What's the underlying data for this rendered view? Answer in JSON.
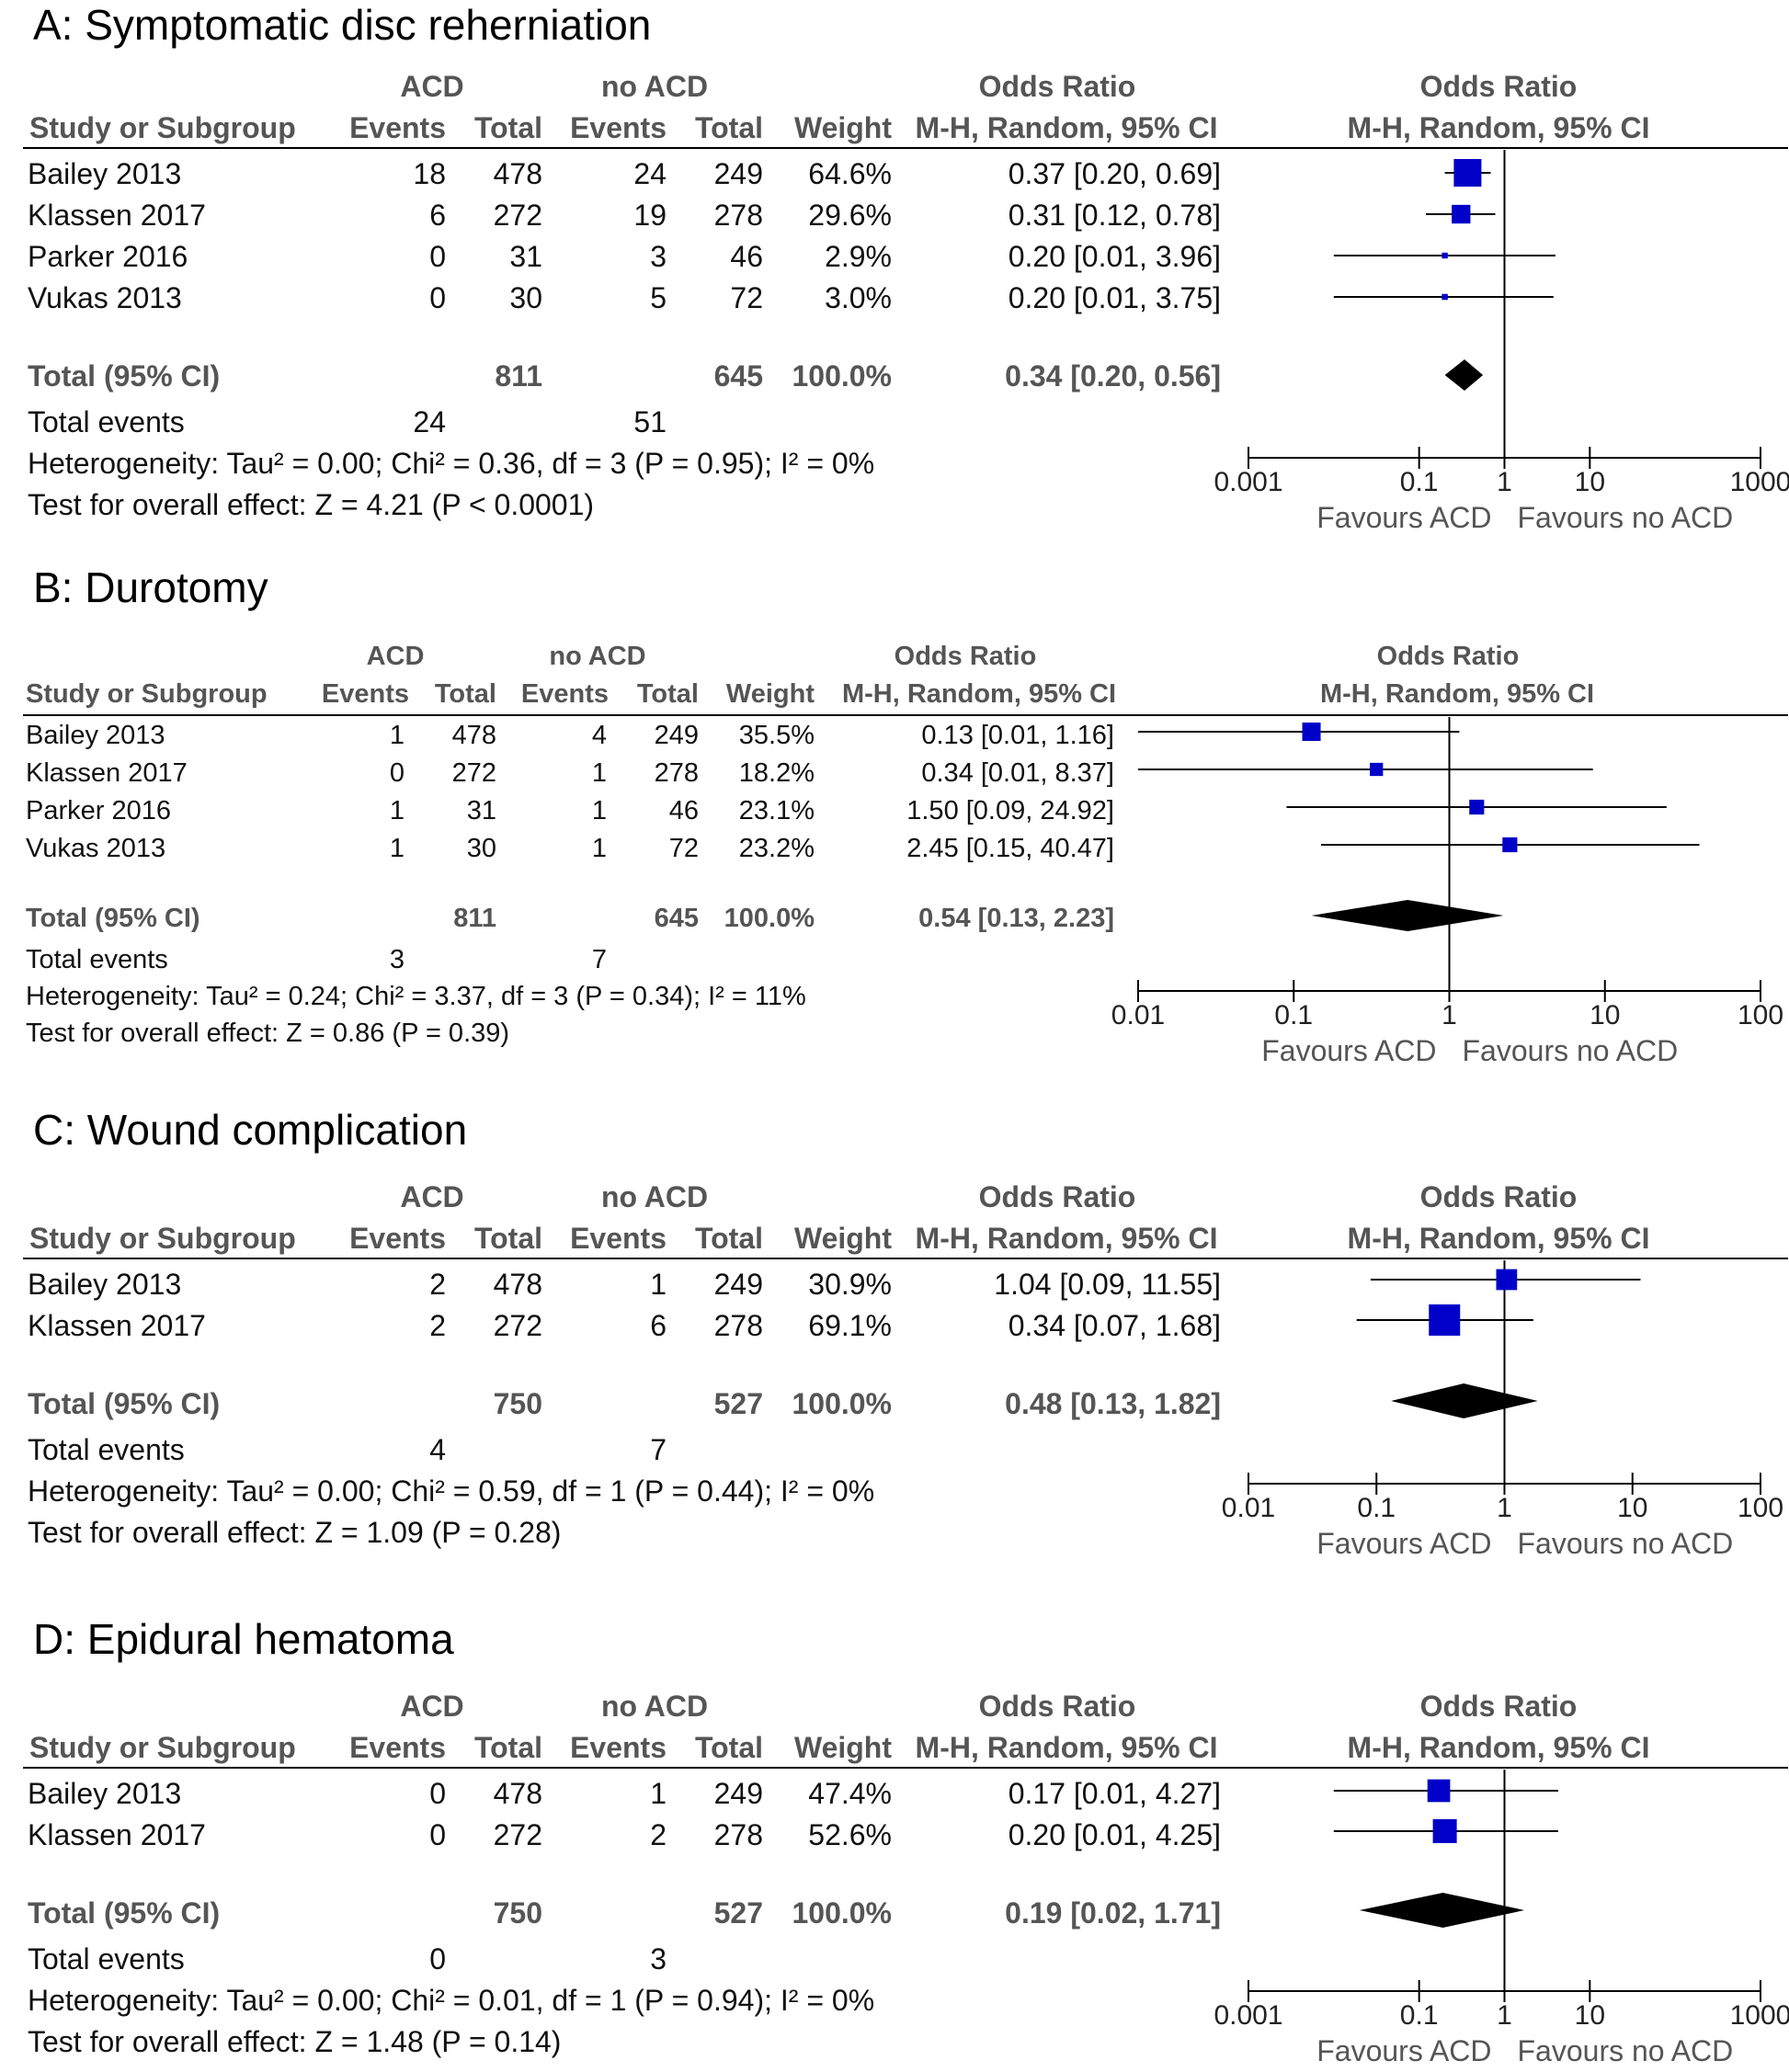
{
  "column_headers": {
    "acd": "ACD",
    "no_acd": "no ACD",
    "odds_ratio": "Odds Ratio",
    "study": "Study or Subgroup",
    "events": "Events",
    "total": "Total",
    "weight": "Weight",
    "method": "M-H, Random, 95% CI",
    "total_ci_label": "Total (95% CI)",
    "total_events_label": "Total events"
  },
  "chart_data": [
    {
      "type": "forest",
      "title": "A: Symptomatic disc reherniation",
      "studies": [
        {
          "name": "Bailey 2013",
          "acd_events": "18",
          "acd_total": "478",
          "no_events": "24",
          "no_total": "249",
          "weight": "64.6%",
          "ci_text": "0.37 [0.20, 0.69]",
          "or": 0.37,
          "lo": 0.2,
          "hi": 0.69,
          "w": 64.6
        },
        {
          "name": "Klassen 2017",
          "acd_events": "6",
          "acd_total": "272",
          "no_events": "19",
          "no_total": "278",
          "weight": "29.6%",
          "ci_text": "0.31 [0.12, 0.78]",
          "or": 0.31,
          "lo": 0.12,
          "hi": 0.78,
          "w": 29.6
        },
        {
          "name": "Parker 2016",
          "acd_events": "0",
          "acd_total": "31",
          "no_events": "3",
          "no_total": "46",
          "weight": "2.9%",
          "ci_text": "0.20 [0.01, 3.96]",
          "or": 0.2,
          "lo": 0.01,
          "hi": 3.96,
          "w": 2.9
        },
        {
          "name": "Vukas 2013",
          "acd_events": "0",
          "acd_total": "30",
          "no_events": "5",
          "no_total": "72",
          "weight": "3.0%",
          "ci_text": "0.20 [0.01, 3.75]",
          "or": 0.2,
          "lo": 0.01,
          "hi": 3.75,
          "w": 3.0
        }
      ],
      "total": {
        "acd_total": "811",
        "no_total": "645",
        "weight": "100.0%",
        "ci_text": "0.34 [0.20, 0.56]",
        "or": 0.34,
        "lo": 0.2,
        "hi": 0.56
      },
      "total_events": {
        "acd": "24",
        "no_acd": "51"
      },
      "heterogeneity": "Heterogeneity: Tau² = 0.00; Chi² = 0.36, df = 3 (P = 0.95); I² = 0%",
      "overall_effect": "Test for overall effect: Z = 4.21 (P < 0.0001)",
      "axis": {
        "ticks": [
          "0.001",
          "0.1",
          "1",
          "10",
          "1000"
        ],
        "tick_values": [
          0.001,
          0.1,
          1,
          10,
          1000
        ],
        "xlim": [
          0.001,
          1000
        ],
        "favours_left": "Favours ACD",
        "favours_right": "Favours no ACD"
      }
    },
    {
      "type": "forest",
      "title": "B: Durotomy",
      "studies": [
        {
          "name": "Bailey 2013",
          "acd_events": "1",
          "acd_total": "478",
          "no_events": "4",
          "no_total": "249",
          "weight": "35.5%",
          "ci_text": "0.13 [0.01, 1.16]",
          "or": 0.13,
          "lo": 0.01,
          "hi": 1.16,
          "w": 35.5
        },
        {
          "name": "Klassen 2017",
          "acd_events": "0",
          "acd_total": "272",
          "no_events": "1",
          "no_total": "278",
          "weight": "18.2%",
          "ci_text": "0.34 [0.01, 8.37]",
          "or": 0.34,
          "lo": 0.01,
          "hi": 8.37,
          "w": 18.2
        },
        {
          "name": "Parker 2016",
          "acd_events": "1",
          "acd_total": "31",
          "no_events": "1",
          "no_total": "46",
          "weight": "23.1%",
          "ci_text": "1.50 [0.09, 24.92]",
          "or": 1.5,
          "lo": 0.09,
          "hi": 24.92,
          "w": 23.1
        },
        {
          "name": "Vukas 2013",
          "acd_events": "1",
          "acd_total": "30",
          "no_events": "1",
          "no_total": "72",
          "weight": "23.2%",
          "ci_text": "2.45 [0.15, 40.47]",
          "or": 2.45,
          "lo": 0.15,
          "hi": 40.47,
          "w": 23.2
        }
      ],
      "total": {
        "acd_total": "811",
        "no_total": "645",
        "weight": "100.0%",
        "ci_text": "0.54 [0.13, 2.23]",
        "or": 0.54,
        "lo": 0.13,
        "hi": 2.23
      },
      "total_events": {
        "acd": "3",
        "no_acd": "7"
      },
      "heterogeneity": "Heterogeneity: Tau² = 0.24; Chi² = 3.37, df = 3 (P = 0.34); I² = 11%",
      "overall_effect": "Test for overall effect: Z = 0.86 (P = 0.39)",
      "axis": {
        "ticks": [
          "0.01",
          "0.1",
          "1",
          "10",
          "100"
        ],
        "tick_values": [
          0.01,
          0.1,
          1,
          10,
          100
        ],
        "xlim": [
          0.01,
          100
        ],
        "favours_left": "Favours ACD",
        "favours_right": "Favours no ACD"
      }
    },
    {
      "type": "forest",
      "title": "C: Wound complication",
      "studies": [
        {
          "name": "Bailey 2013",
          "acd_events": "2",
          "acd_total": "478",
          "no_events": "1",
          "no_total": "249",
          "weight": "30.9%",
          "ci_text": "1.04 [0.09, 11.55]",
          "or": 1.04,
          "lo": 0.09,
          "hi": 11.55,
          "w": 30.9
        },
        {
          "name": "Klassen 2017",
          "acd_events": "2",
          "acd_total": "272",
          "no_events": "6",
          "no_total": "278",
          "weight": "69.1%",
          "ci_text": "0.34 [0.07, 1.68]",
          "or": 0.34,
          "lo": 0.07,
          "hi": 1.68,
          "w": 69.1
        }
      ],
      "total": {
        "acd_total": "750",
        "no_total": "527",
        "weight": "100.0%",
        "ci_text": "0.48 [0.13, 1.82]",
        "or": 0.48,
        "lo": 0.13,
        "hi": 1.82
      },
      "total_events": {
        "acd": "4",
        "no_acd": "7"
      },
      "heterogeneity": "Heterogeneity: Tau² = 0.00; Chi² = 0.59, df = 1 (P = 0.44); I² = 0%",
      "overall_effect": "Test for overall effect: Z = 1.09 (P = 0.28)",
      "axis": {
        "ticks": [
          "0.01",
          "0.1",
          "1",
          "10",
          "100"
        ],
        "tick_values": [
          0.01,
          0.1,
          1,
          10,
          100
        ],
        "xlim": [
          0.01,
          100
        ],
        "favours_left": "Favours ACD",
        "favours_right": "Favours no ACD"
      }
    },
    {
      "type": "forest",
      "title": "D: Epidural hematoma",
      "studies": [
        {
          "name": "Bailey 2013",
          "acd_events": "0",
          "acd_total": "478",
          "no_events": "1",
          "no_total": "249",
          "weight": "47.4%",
          "ci_text": "0.17 [0.01, 4.27]",
          "or": 0.17,
          "lo": 0.01,
          "hi": 4.27,
          "w": 47.4
        },
        {
          "name": "Klassen 2017",
          "acd_events": "0",
          "acd_total": "272",
          "no_events": "2",
          "no_total": "278",
          "weight": "52.6%",
          "ci_text": "0.20 [0.01, 4.25]",
          "or": 0.2,
          "lo": 0.01,
          "hi": 4.25,
          "w": 52.6
        }
      ],
      "total": {
        "acd_total": "750",
        "no_total": "527",
        "weight": "100.0%",
        "ci_text": "0.19 [0.02, 1.71]",
        "or": 0.19,
        "lo": 0.02,
        "hi": 1.71
      },
      "total_events": {
        "acd": "0",
        "no_acd": "3"
      },
      "heterogeneity": "Heterogeneity: Tau² = 0.00; Chi² = 0.01, df = 1 (P = 0.94); I² = 0%",
      "overall_effect": "Test for overall effect: Z = 1.48 (P = 0.14)",
      "axis": {
        "ticks": [
          "0.001",
          "0.1",
          "1",
          "10",
          "1000"
        ],
        "tick_values": [
          0.001,
          0.1,
          1,
          10,
          1000
        ],
        "xlim": [
          0.001,
          1000
        ],
        "favours_left": "Favours ACD",
        "favours_right": "Favours no ACD"
      }
    }
  ],
  "colors": {
    "study_marker": "#0000c8",
    "diamond": "#000000",
    "header_text": "#555555"
  }
}
